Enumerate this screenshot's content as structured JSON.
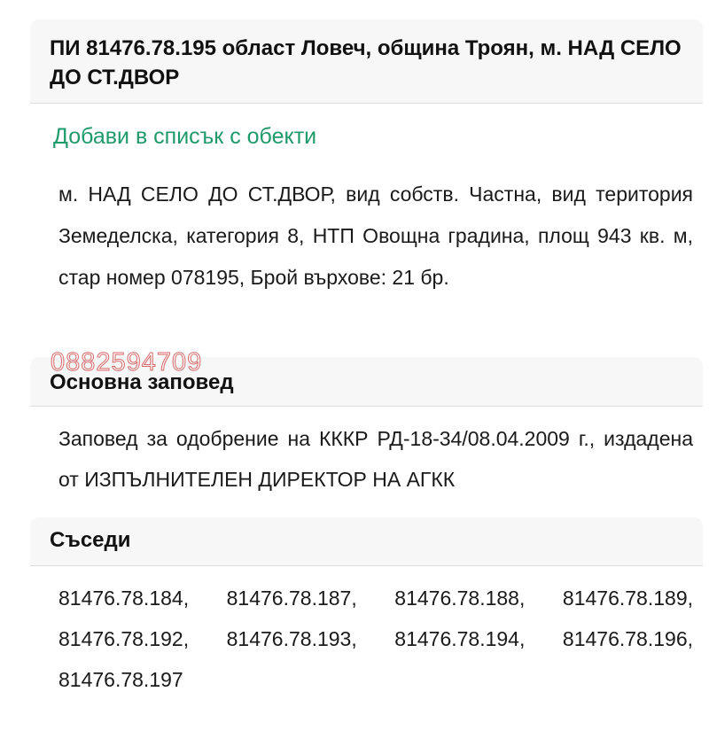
{
  "title": "ПИ 81476.78.195 област Ловеч, община Троян, м. НАД СЕЛО ДО СТ.ДВОР",
  "add_link": "Добави в списък с обекти",
  "description": "м. НАД СЕЛО ДО СТ.ДВОР, вид собств. Частна, вид територия Земеделска, категория 8, НТП Овощна градина, площ 943 кв. м, стар номер 078195, Брой върхове: 21 бр.",
  "watermark": "0882594709",
  "order": {
    "heading": "Основна заповед",
    "text": "Заповед за одобрение на КККР РД-18-34/08.04.2009 г., издадена от ИЗПЪЛНИТЕЛЕН ДИРЕКТОР НА АГКК"
  },
  "neighbors": {
    "heading": "Съседи",
    "text": "81476.78.184, 81476.78.187, 81476.78.188, 81476.78.189, 81476.78.192, 81476.78.193, 81476.78.194, 81476.78.196, 81476.78.197"
  },
  "colors": {
    "link": "#1f9a6b",
    "watermark": "#d96a6a",
    "header_bg": "#f7f7f7"
  }
}
